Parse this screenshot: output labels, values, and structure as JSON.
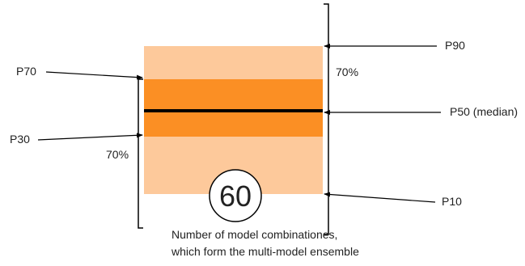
{
  "labels": {
    "p90": "P90",
    "p70": "P70",
    "p50": "P50 (median)",
    "p30": "P30",
    "p10": "P10",
    "upper_pct": "70%",
    "lower_pct": "70%",
    "count": "60",
    "caption_line1": "Number of model combinationes,",
    "caption_line2": "which form the multi-model ensemble"
  },
  "colors": {
    "outer_band": "#fdc99b",
    "inner_band": "#fb8f24",
    "median_line": "#000000",
    "arrows": "#000000"
  }
}
